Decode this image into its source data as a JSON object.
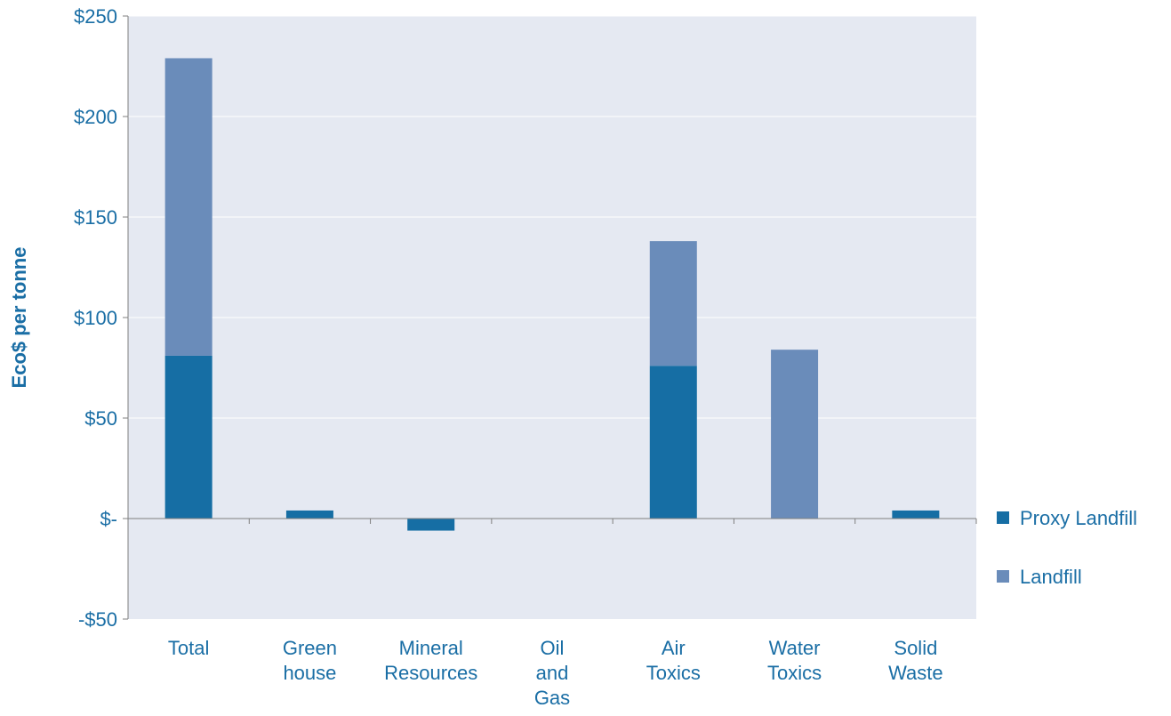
{
  "chart_data": {
    "type": "bar",
    "stacked": true,
    "title": "",
    "xlabel": "",
    "ylabel": "Eco$ per tonne",
    "ylim": [
      -50,
      250
    ],
    "yticks": [
      -50,
      0,
      50,
      100,
      150,
      200,
      250
    ],
    "ytick_labels": [
      "-$50",
      "$-",
      "$50",
      "$100",
      "$150",
      "$200",
      "$250"
    ],
    "categories": [
      "Total",
      "Green house",
      "Mineral Resources",
      "Oil and Gas",
      "Air Toxics",
      "Water Toxics",
      "Solid Waste"
    ],
    "category_label_lines": [
      [
        "Total"
      ],
      [
        "Green",
        "house"
      ],
      [
        "Mineral",
        "Resources"
      ],
      [
        "Oil",
        "and",
        "Gas"
      ],
      [
        "Air",
        "Toxics"
      ],
      [
        "Water",
        "Toxics"
      ],
      [
        "Solid",
        "Waste"
      ]
    ],
    "series": [
      {
        "name": "Proxy Landfill",
        "color": "#166ea4",
        "values": [
          81,
          4,
          -6,
          0,
          76,
          0,
          4
        ]
      },
      {
        "name": "Landfill",
        "color": "#6a8cba",
        "values": [
          148,
          0,
          0,
          0,
          62,
          84,
          0
        ]
      }
    ],
    "grid": true,
    "legend_position": "right",
    "plot_background": "#e5e9f2",
    "text_color": "#1a6ea5"
  }
}
